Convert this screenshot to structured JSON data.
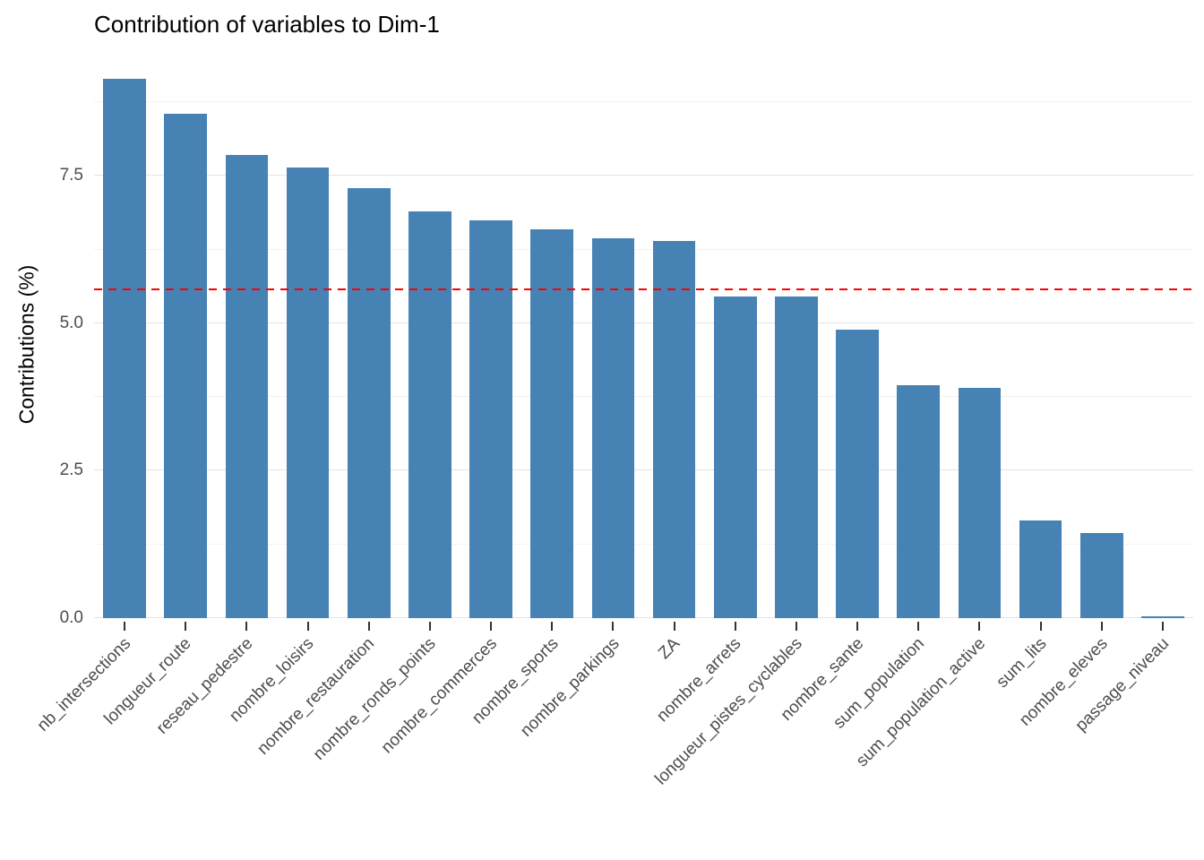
{
  "chart_data": {
    "type": "bar",
    "title": "Contribution of variables to Dim-1",
    "xlabel": "",
    "ylabel": "Contributions (%)",
    "categories": [
      "nb_intersections",
      "longueur_route",
      "reseau_pedestre",
      "nombre_loisirs",
      "nombre_restauration",
      "nombre_ronds_points",
      "nombre_commerces",
      "nombre_sports",
      "nombre_parkings",
      "ZA",
      "nombre_arrets",
      "longueur_pistes_cyclables",
      "nombre_sante",
      "sum_population",
      "sum_population_active",
      "sum_lits",
      "nombre_eleves",
      "passage_niveau"
    ],
    "values": [
      9.15,
      8.55,
      7.85,
      7.65,
      7.3,
      6.9,
      6.75,
      6.6,
      6.45,
      6.4,
      5.45,
      5.45,
      4.9,
      3.95,
      3.9,
      1.65,
      1.45,
      0.02
    ],
    "yticks": [
      0,
      2.5,
      5,
      7.5
    ],
    "ytick_labels": [
      "0.0",
      "2.5",
      "5.0",
      "7.5"
    ],
    "ylim": [
      0,
      9.3
    ],
    "reference_line": 5.56,
    "bar_color": "#4682B4",
    "reference_line_color": "#FF0000",
    "grid": true,
    "legend_position": "none"
  }
}
